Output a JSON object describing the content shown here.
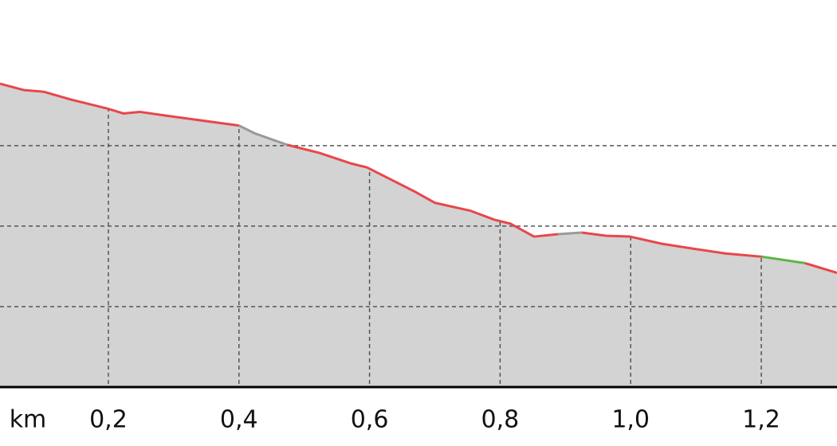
{
  "chart_data": {
    "type": "area-profile",
    "x_label": "km",
    "xlim": [
      0.034,
      1.316
    ],
    "ylim": [
      0,
      4.81
    ],
    "xticks": [
      {
        "value": 0.2,
        "label": "0,2"
      },
      {
        "value": 0.4,
        "label": "0,4"
      },
      {
        "value": 0.6,
        "label": "0,6"
      },
      {
        "value": 0.8,
        "label": "0,8"
      },
      {
        "value": 1.0,
        "label": "1,0"
      },
      {
        "value": 1.2,
        "label": "1,2"
      }
    ],
    "yticks": [
      1,
      2,
      3
    ],
    "grid": true,
    "fill_color": "#d3d3d3",
    "series": [
      {
        "color": "#e8474a",
        "x": [
          0.034,
          0.071,
          0.101,
          0.144,
          0.199,
          0.223,
          0.248,
          0.291,
          0.327,
          0.4
        ],
        "values": [
          3.77,
          3.69,
          3.67,
          3.57,
          3.46,
          3.4,
          3.42,
          3.37,
          3.33,
          3.25
        ]
      },
      {
        "color": "#999999",
        "x": [
          0.4,
          0.425,
          0.474
        ],
        "values": [
          3.25,
          3.15,
          3.01
        ]
      },
      {
        "color": "#e8474a",
        "x": [
          0.474,
          0.523,
          0.571,
          0.596,
          0.669,
          0.7,
          0.755,
          0.791,
          0.816,
          0.852,
          0.889
        ],
        "values": [
          3.01,
          2.91,
          2.78,
          2.73,
          2.43,
          2.29,
          2.19,
          2.08,
          2.03,
          1.87,
          1.9
        ]
      },
      {
        "color": "#999999",
        "x": [
          0.889,
          0.925
        ],
        "values": [
          1.9,
          1.92
        ]
      },
      {
        "color": "#e8474a",
        "x": [
          0.925,
          0.962,
          0.999,
          1.048,
          1.096,
          1.145,
          1.201
        ],
        "values": [
          1.92,
          1.88,
          1.87,
          1.78,
          1.72,
          1.66,
          1.62
        ]
      },
      {
        "color": "#5cb548",
        "x": [
          1.201,
          1.267
        ],
        "values": [
          1.62,
          1.54
        ]
      },
      {
        "color": "#e8474a",
        "x": [
          1.267,
          1.316
        ],
        "values": [
          1.54,
          1.42
        ]
      }
    ]
  }
}
